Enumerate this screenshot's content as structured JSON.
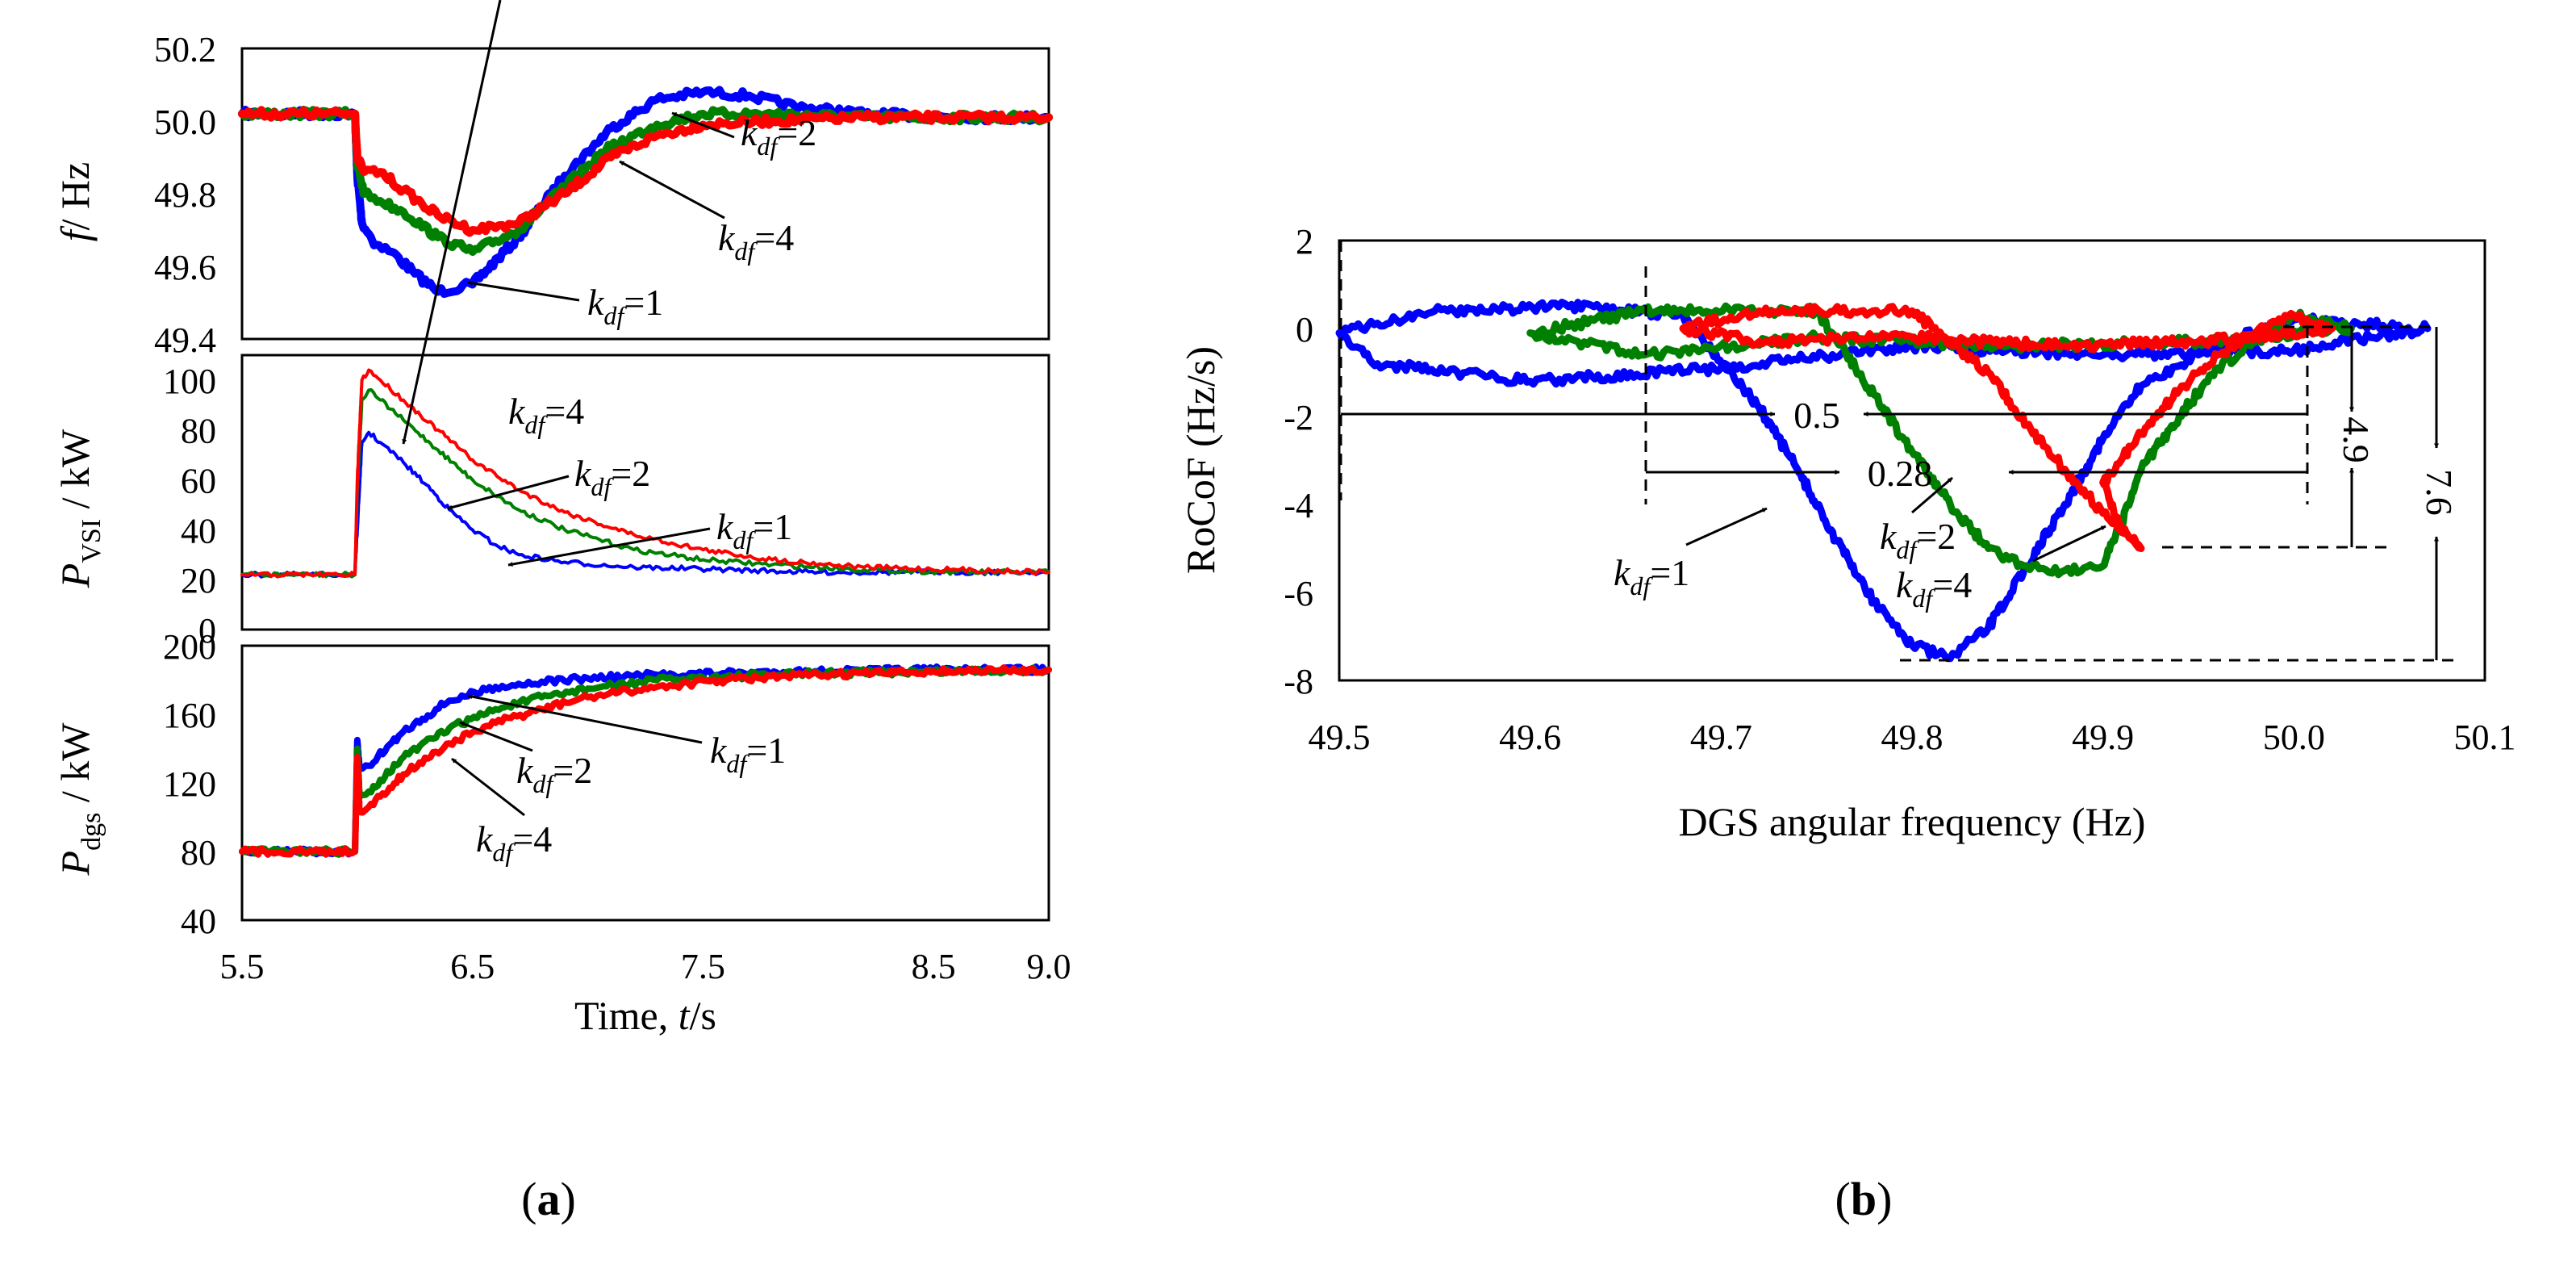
{
  "colors": {
    "kdf1": "#0000ff",
    "kdf2": "#008000",
    "kdf4": "#ff0000"
  },
  "figure": {
    "label_a": "a",
    "label_b": "b"
  },
  "chart_data": [
    {
      "id": "freq",
      "type": "line",
      "ylabel_main": "f",
      "ylabel_rest": "/ Hz",
      "ylim": [
        49.4,
        50.2
      ],
      "xlim": [
        5.5,
        9.0
      ],
      "yticks": [
        "50.2",
        "50.0",
        "49.8",
        "49.6",
        "49.4"
      ],
      "series": [
        {
          "name": "k_df=1",
          "color": "#0000ff",
          "x": [
            5.5,
            5.99,
            6.0,
            6.02,
            6.08,
            6.15,
            6.25,
            6.35,
            6.5,
            6.7,
            6.9,
            7.1,
            7.3,
            7.5,
            7.7,
            7.9,
            8.2,
            8.6,
            9.0
          ],
          "y": [
            50.02,
            50.02,
            49.85,
            49.72,
            49.66,
            49.64,
            49.58,
            49.53,
            49.55,
            49.68,
            49.85,
            49.98,
            50.06,
            50.08,
            50.07,
            50.04,
            50.02,
            50.01,
            50.01
          ]
        },
        {
          "name": "k_df=2",
          "color": "#008000",
          "x": [
            5.5,
            5.99,
            6.0,
            6.03,
            6.1,
            6.2,
            6.35,
            6.5,
            6.7,
            6.9,
            7.1,
            7.3,
            7.5,
            7.8,
            8.2,
            8.6,
            9.0
          ],
          "y": [
            50.02,
            50.02,
            49.88,
            49.8,
            49.78,
            49.75,
            49.68,
            49.64,
            49.7,
            49.82,
            49.93,
            49.99,
            50.02,
            50.02,
            50.01,
            50.01,
            50.01
          ]
        },
        {
          "name": "k_df=4",
          "color": "#ff0000",
          "x": [
            5.5,
            5.99,
            6.0,
            6.03,
            6.1,
            6.2,
            6.35,
            6.5,
            6.7,
            6.9,
            7.1,
            7.3,
            7.5,
            7.8,
            8.2,
            8.6,
            9.0
          ],
          "y": [
            50.02,
            50.02,
            49.9,
            49.86,
            49.86,
            49.81,
            49.74,
            49.7,
            49.72,
            49.8,
            49.9,
            49.96,
            49.99,
            50.0,
            50.01,
            50.01,
            50.01
          ]
        }
      ],
      "annotations": [
        {
          "text": "=2",
          "sub": "df",
          "target": [
            7.35,
            50.03
          ]
        },
        {
          "text": "=4",
          "sub": "df",
          "target": [
            7.1,
            49.89
          ]
        },
        {
          "text": "=1",
          "sub": "df",
          "target": [
            6.45,
            49.55
          ]
        }
      ]
    },
    {
      "id": "pvsi",
      "type": "line",
      "ylabel_main": "P",
      "ylabel_sub": "VSI",
      "ylabel_rest": " / kW",
      "ylim": [
        0,
        110
      ],
      "xlim": [
        5.5,
        9.0
      ],
      "yticks": [
        "100",
        "80",
        "60",
        "40",
        "20",
        "0"
      ],
      "ytick_values": [
        100,
        80,
        60,
        40,
        20,
        0
      ],
      "series": [
        {
          "name": "k_df=1",
          "color": "#0000ff",
          "x": [
            5.5,
            5.99,
            6.0,
            6.02,
            6.05,
            6.1,
            6.2,
            6.3,
            6.4,
            6.5,
            6.6,
            6.7,
            6.9,
            7.2,
            7.6,
            8.0,
            8.5,
            9.0
          ],
          "y": [
            22,
            22,
            40,
            75,
            79,
            75,
            67,
            58,
            48,
            40,
            34,
            30,
            27,
            25,
            24,
            23,
            23,
            23
          ]
        },
        {
          "name": "k_df=2",
          "color": "#008000",
          "x": [
            5.5,
            5.99,
            6.0,
            6.02,
            6.05,
            6.1,
            6.2,
            6.35,
            6.5,
            6.7,
            6.9,
            7.2,
            7.5,
            7.8,
            8.2,
            8.6,
            9.0
          ],
          "y": [
            22,
            22,
            55,
            92,
            96,
            92,
            84,
            72,
            60,
            48,
            40,
            32,
            28,
            26,
            24,
            23,
            23
          ]
        },
        {
          "name": "k_df=4",
          "color": "#ff0000",
          "x": [
            5.5,
            5.99,
            6.0,
            6.02,
            6.05,
            6.1,
            6.2,
            6.35,
            6.5,
            6.7,
            6.9,
            7.2,
            7.5,
            7.8,
            8.2,
            8.6,
            9.0
          ],
          "y": [
            22,
            22,
            60,
            100,
            104,
            100,
            92,
            80,
            68,
            56,
            47,
            38,
            32,
            28,
            25,
            24,
            23
          ]
        }
      ],
      "annotations": [
        {
          "text": "=4",
          "sub": "df",
          "target": [
            6.2,
            83
          ]
        },
        {
          "text": "=2",
          "sub": "df",
          "target": [
            6.4,
            52
          ]
        },
        {
          "text": "=1",
          "sub": "df",
          "target": [
            6.7,
            30
          ]
        }
      ]
    },
    {
      "id": "pdgs",
      "type": "line",
      "ylabel_main": "P",
      "ylabel_sub": "dgs",
      "ylabel_rest": " / kW",
      "ylim": [
        40,
        200
      ],
      "xlim": [
        5.5,
        9.0
      ],
      "yticks": [
        "200",
        "160",
        "120",
        "80",
        "40"
      ],
      "ytick_values": [
        200,
        160,
        120,
        80,
        40
      ],
      "xticks": [
        "5.5",
        "6.5",
        "7.5",
        "8.5",
        "9.0"
      ],
      "xtick_values": [
        5.5,
        6.5,
        7.5,
        8.5,
        9.0
      ],
      "xlabel_main": "Time, ",
      "xlabel_italic": "t",
      "xlabel_rest": "/s",
      "series": [
        {
          "name": "k_df=1",
          "color": "#0000ff",
          "x": [
            5.5,
            5.99,
            6.0,
            6.01,
            6.05,
            6.2,
            6.4,
            6.6,
            6.8,
            7.0,
            7.3,
            7.6,
            8.0,
            8.5,
            9.0
          ],
          "y": [
            80,
            80,
            145,
            128,
            130,
            150,
            168,
            176,
            179,
            181,
            183,
            184,
            185,
            186,
            186
          ]
        },
        {
          "name": "k_df=2",
          "color": "#008000",
          "x": [
            5.5,
            5.99,
            6.0,
            6.01,
            6.05,
            6.2,
            6.4,
            6.6,
            6.8,
            7.0,
            7.3,
            7.6,
            8.0,
            8.5,
            9.0
          ],
          "y": [
            80,
            80,
            140,
            112,
            115,
            135,
            152,
            163,
            170,
            175,
            180,
            182,
            184,
            185,
            186
          ]
        },
        {
          "name": "k_df=4",
          "color": "#ff0000",
          "x": [
            5.5,
            5.99,
            6.0,
            6.01,
            6.05,
            6.2,
            6.4,
            6.6,
            6.8,
            7.0,
            7.3,
            7.6,
            8.0,
            8.5,
            9.0
          ],
          "y": [
            80,
            80,
            135,
            103,
            106,
            125,
            143,
            155,
            163,
            170,
            176,
            180,
            183,
            185,
            186
          ]
        }
      ],
      "annotations": [
        {
          "text": "=1",
          "sub": "df",
          "target": [
            6.55,
            174
          ]
        },
        {
          "text": "=2",
          "sub": "df",
          "target": [
            6.45,
            156
          ]
        },
        {
          "text": "=4",
          "sub": "df",
          "target": [
            6.35,
            138
          ]
        }
      ]
    },
    {
      "id": "rocof",
      "type": "line",
      "title": "",
      "xlabel": "DGS angular frequency (Hz)",
      "ylabel": "RoCoF (Hz/s)",
      "xlim": [
        49.5,
        50.1
      ],
      "ylim": [
        -8,
        2
      ],
      "xticks": [
        "49.5",
        "49.6",
        "49.7",
        "49.8",
        "49.9",
        "50.0",
        "50.1"
      ],
      "xtick_values": [
        49.5,
        49.6,
        49.7,
        49.8,
        49.9,
        50.0,
        50.1
      ],
      "yticks": [
        "2",
        "0",
        "-2",
        "-4",
        "-6",
        "-8"
      ],
      "ytick_values": [
        2,
        0,
        -2,
        -4,
        -6,
        -8
      ],
      "series": [
        {
          "name": "k_df=1",
          "color": "#0000ff",
          "x": [
            50.0,
            50.07,
            50.0,
            49.9,
            49.8,
            49.7,
            49.6,
            49.52,
            49.5,
            49.55,
            49.62,
            49.68,
            49.72,
            49.74,
            49.76,
            49.78,
            49.8,
            49.82,
            49.84,
            49.86,
            49.88,
            49.9,
            49.92,
            49.95,
            49.97,
            49.99,
            50.0
          ],
          "y": [
            0.2,
            0.0,
            -0.5,
            -0.6,
            -0.4,
            -0.9,
            -1.2,
            -0.8,
            -0.1,
            0.4,
            0.5,
            0.3,
            -1.8,
            -3.2,
            -4.8,
            -6.2,
            -7.2,
            -7.5,
            -6.8,
            -5.4,
            -4.0,
            -2.5,
            -1.3,
            -0.6,
            -0.2,
            0.0,
            0.2
          ]
        },
        {
          "name": "k_df=2",
          "color": "#008000",
          "x": [
            50.0,
            50.03,
            49.95,
            49.85,
            49.75,
            49.66,
            49.6,
            49.66,
            49.75,
            49.78,
            49.8,
            49.82,
            49.84,
            49.86,
            49.88,
            49.9,
            49.91,
            49.92,
            49.94,
            49.96,
            49.98,
            50.0
          ],
          "y": [
            0.3,
            0.0,
            -0.3,
            -0.4,
            -0.2,
            -0.6,
            -0.1,
            0.4,
            0.4,
            -1.5,
            -2.8,
            -4.0,
            -5.0,
            -5.4,
            -5.5,
            -5.4,
            -4.4,
            -3.2,
            -2.0,
            -0.9,
            -0.3,
            0.3
          ]
        },
        {
          "name": "k_df=4",
          "color": "#ff0000",
          "x": [
            50.0,
            50.02,
            49.95,
            49.88,
            49.8,
            49.72,
            49.68,
            49.72,
            49.8,
            49.84,
            49.86,
            49.88,
            49.9,
            49.92,
            49.91,
            49.9,
            49.92,
            49.94,
            49.96,
            49.98,
            50.0
          ],
          "y": [
            0.3,
            0.0,
            -0.3,
            -0.4,
            -0.2,
            -0.3,
            0.0,
            0.4,
            0.4,
            -1.0,
            -2.2,
            -3.2,
            -4.2,
            -5.0,
            -4.6,
            -3.5,
            -2.4,
            -1.4,
            -0.6,
            -0.1,
            0.3
          ]
        }
      ],
      "measurements": [
        {
          "label": "0.5",
          "kind": "horizontal"
        },
        {
          "label": "0.28",
          "kind": "horizontal"
        },
        {
          "label": "4.9",
          "kind": "vertical"
        },
        {
          "label": "7.6",
          "kind": "vertical"
        }
      ],
      "annotations": [
        {
          "text": "=1",
          "sub": "df"
        },
        {
          "text": "=2",
          "sub": "df"
        },
        {
          "text": "=4",
          "sub": "df"
        }
      ]
    }
  ]
}
